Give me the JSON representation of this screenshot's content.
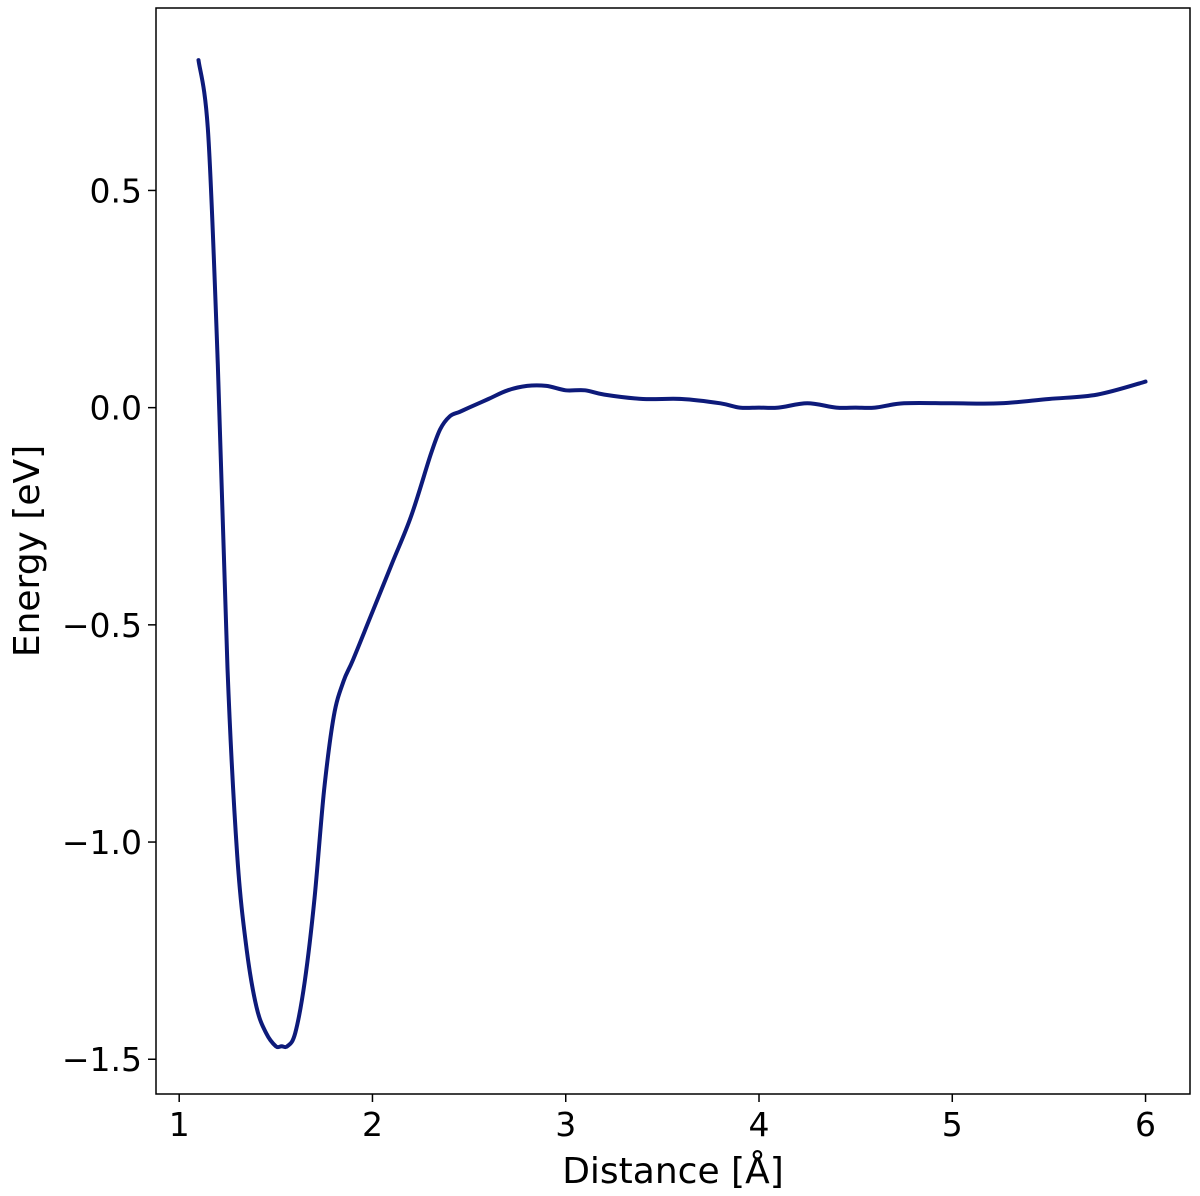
{
  "chart_data": {
    "type": "line",
    "title": "",
    "xlabel": "Distance [Å]",
    "ylabel": "Energy [eV]",
    "xlim": [
      0.88,
      6.23
    ],
    "ylim": [
      -1.58,
      0.92
    ],
    "xticks": [
      1,
      2,
      3,
      4,
      5,
      6
    ],
    "xtick_labels": [
      "1",
      "2",
      "3",
      "4",
      "5",
      "6"
    ],
    "yticks": [
      -1.5,
      -1.0,
      -0.5,
      0.0,
      0.5
    ],
    "ytick_labels": [
      "−1.5",
      "−1.0",
      "−0.5",
      "0.0",
      "0.5"
    ],
    "grid": false,
    "line_color": "#0d1a7a",
    "series": [
      {
        "x": [
          1.1,
          1.15,
          1.2,
          1.25,
          1.3,
          1.35,
          1.4,
          1.45,
          1.5,
          1.53,
          1.56,
          1.6,
          1.65,
          1.7,
          1.75,
          1.8,
          1.85,
          1.9,
          2.0,
          2.1,
          2.2,
          2.3,
          2.35,
          2.4,
          2.45,
          2.5,
          2.6,
          2.7,
          2.8,
          2.9,
          3.0,
          3.1,
          3.2,
          3.4,
          3.6,
          3.8,
          3.9,
          4.0,
          4.1,
          4.25,
          4.4,
          4.5,
          4.6,
          4.75,
          5.0,
          5.25,
          5.5,
          5.75,
          6.0
        ],
        "y": [
          0.8,
          0.63,
          0.1,
          -0.6,
          -1.03,
          -1.25,
          -1.38,
          -1.44,
          -1.47,
          -1.47,
          -1.47,
          -1.44,
          -1.32,
          -1.13,
          -0.88,
          -0.71,
          -0.63,
          -0.58,
          -0.47,
          -0.36,
          -0.25,
          -0.11,
          -0.05,
          -0.02,
          -0.01,
          0.0,
          0.02,
          0.04,
          0.05,
          0.05,
          0.04,
          0.04,
          0.03,
          0.02,
          0.02,
          0.01,
          0.0,
          0.0,
          0.0,
          0.01,
          0.0,
          0.0,
          0.0,
          0.01,
          0.01,
          0.01,
          0.02,
          0.03,
          0.06
        ]
      }
    ]
  }
}
